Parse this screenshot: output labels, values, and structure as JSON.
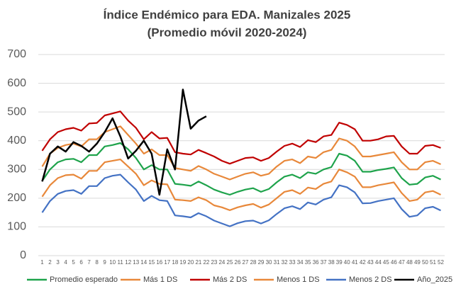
{
  "chart_data": {
    "type": "line",
    "title": "Índice Endémico para EDA. Manizales 2025",
    "subtitle": "(Promedio móvil 2020-2024)",
    "categories": [
      "1",
      "2",
      "3",
      "4",
      "5",
      "6",
      "7",
      "8",
      "9",
      "10",
      "11",
      "12",
      "13",
      "14",
      "15",
      "16",
      "17",
      "18",
      "19",
      "20",
      "21",
      "22",
      "23",
      "24",
      "25",
      "26",
      "27",
      "28",
      "29",
      "30",
      "31",
      "32",
      "33",
      "34",
      "35",
      "36",
      "37",
      "38",
      "39",
      "40",
      "41",
      "42",
      "43",
      "44",
      "45",
      "46",
      "47",
      "48",
      "49",
      "50",
      "51",
      "52"
    ],
    "ylim": [
      0,
      700
    ],
    "yticks": [
      0,
      100,
      200,
      300,
      400,
      500,
      600,
      700
    ],
    "grid": true,
    "series": [
      {
        "name": "Promedio esperado",
        "color": "#1ea34b",
        "values": [
          260,
          300,
          325,
          335,
          337,
          325,
          350,
          350,
          380,
          385,
          392,
          370,
          340,
          300,
          315,
          300,
          300,
          250,
          247,
          243,
          258,
          245,
          230,
          220,
          212,
          222,
          230,
          235,
          222,
          232,
          255,
          275,
          282,
          270,
          290,
          285,
          300,
          308,
          355,
          348,
          330,
          292,
          292,
          298,
          302,
          307,
          270,
          247,
          250,
          272,
          278,
          265
        ]
      },
      {
        "name": "Más 1 DS",
        "color": "#e8883a",
        "values": [
          310,
          355,
          375,
          385,
          390,
          380,
          405,
          405,
          430,
          440,
          450,
          420,
          390,
          355,
          370,
          350,
          350,
          305,
          300,
          295,
          312,
          300,
          285,
          275,
          265,
          275,
          285,
          290,
          278,
          285,
          310,
          330,
          335,
          322,
          345,
          340,
          360,
          368,
          408,
          400,
          380,
          345,
          345,
          350,
          355,
          360,
          325,
          300,
          300,
          325,
          330,
          318
        ]
      },
      {
        "name": "Más 2 DS",
        "color": "#c00000",
        "values": [
          365,
          405,
          430,
          440,
          445,
          435,
          460,
          462,
          488,
          495,
          502,
          470,
          445,
          405,
          430,
          408,
          410,
          360,
          355,
          352,
          368,
          357,
          345,
          330,
          320,
          330,
          340,
          342,
          330,
          340,
          362,
          382,
          390,
          378,
          402,
          395,
          415,
          420,
          463,
          455,
          440,
          400,
          400,
          405,
          415,
          417,
          380,
          355,
          355,
          382,
          385,
          375
        ]
      },
      {
        "name": "Menos 1 DS",
        "color": "#e8883a",
        "values": [
          205,
          245,
          270,
          280,
          282,
          268,
          295,
          295,
          325,
          330,
          335,
          310,
          285,
          245,
          262,
          250,
          248,
          195,
          193,
          190,
          203,
          193,
          175,
          168,
          158,
          168,
          175,
          180,
          167,
          178,
          200,
          222,
          228,
          215,
          237,
          232,
          250,
          258,
          300,
          290,
          275,
          238,
          238,
          245,
          250,
          255,
          218,
          190,
          195,
          220,
          225,
          212
        ]
      },
      {
        "name": "Menos 2 DS",
        "color": "#4472c4",
        "values": [
          150,
          190,
          215,
          225,
          228,
          215,
          242,
          242,
          270,
          278,
          282,
          255,
          230,
          190,
          208,
          193,
          190,
          140,
          137,
          133,
          148,
          137,
          122,
          112,
          102,
          113,
          120,
          122,
          112,
          123,
          145,
          165,
          172,
          162,
          185,
          178,
          195,
          203,
          245,
          238,
          220,
          182,
          183,
          190,
          195,
          200,
          162,
          135,
          140,
          165,
          170,
          157
        ]
      },
      {
        "name": "Año_2025",
        "color": "#000000",
        "values": [
          258,
          355,
          380,
          362,
          395,
          382,
          362,
          390,
          430,
          478,
          415,
          338,
          365,
          400,
          355,
          212,
          370,
          300,
          578,
          442,
          470,
          485,
          null,
          null,
          null,
          null,
          null,
          null,
          null,
          null,
          null,
          null,
          null,
          null,
          null,
          null,
          null,
          null,
          null,
          null,
          null,
          null,
          null,
          null,
          null,
          null,
          null,
          null,
          null,
          null,
          null,
          null
        ]
      }
    ]
  }
}
